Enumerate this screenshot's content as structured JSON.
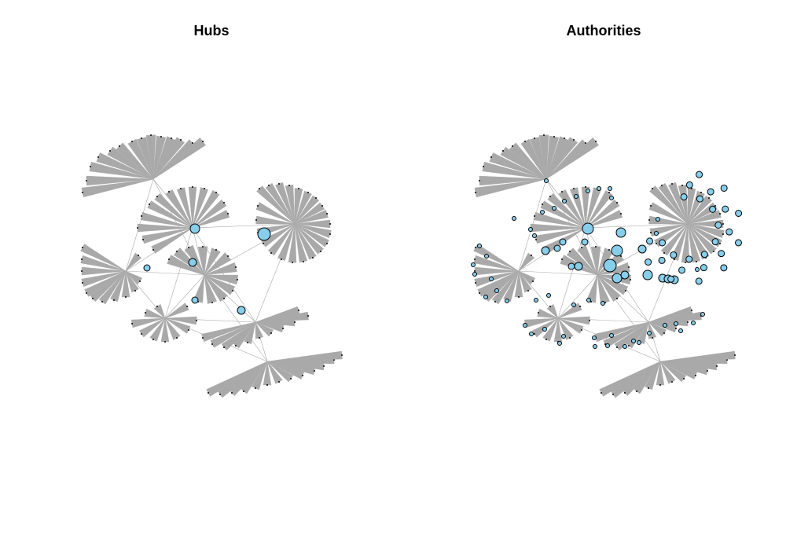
{
  "panels": [
    {
      "title": "Hubs"
    },
    {
      "title": "Authorities"
    }
  ],
  "colors": {
    "edge": "#a9a9a9",
    "vertex_fill": "#87ceeb",
    "vertex_stroke": "#000000",
    "background": "#ffffff"
  }
}
